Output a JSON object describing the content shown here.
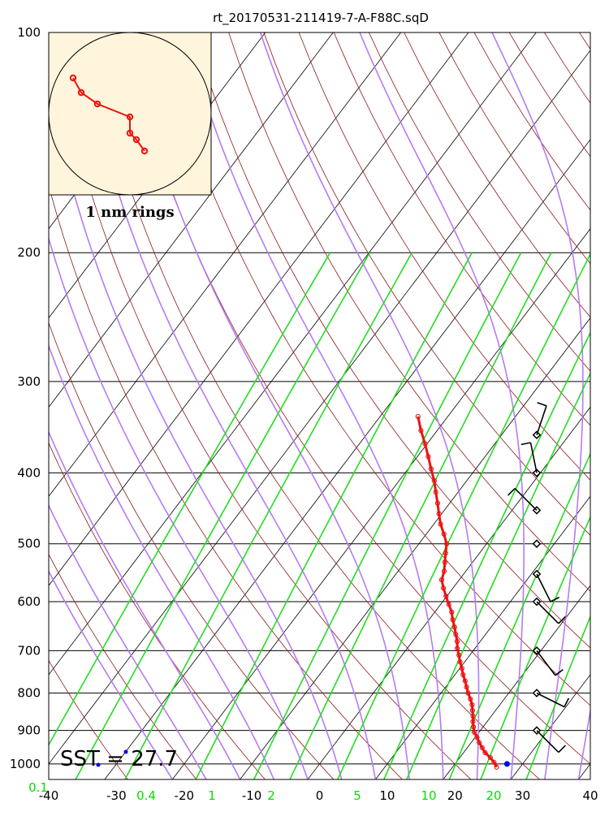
{
  "chart_data": {
    "type": "skew-t",
    "title": "rt_20170531-211419-7-A-F88C.sqD",
    "pressure_ticks": [
      100,
      200,
      300,
      400,
      500,
      600,
      700,
      800,
      900,
      1000
    ],
    "temperature_ticks": [
      -40,
      -30,
      -20,
      -10,
      0,
      10,
      20,
      30,
      40
    ],
    "mixing_ratio_ticks": [
      0.1,
      0.4,
      1,
      2,
      5,
      10,
      20
    ],
    "xlim": [
      -40,
      40
    ],
    "ylim": [
      1050,
      100
    ],
    "pressure_scale": "log",
    "sst_label": "SST = 27.7",
    "inset_label": "1 nm rings",
    "colors": {
      "temperature": "#ee1111",
      "isotherm": "#000000",
      "dry_adiabat": "#8b1a1a",
      "moist_adiabat": "#b57cf0",
      "mixing_ratio": "#22dd22",
      "inset_bg": "#fff5dc",
      "sst_marker": "#0000ee"
    },
    "temperature_profile": [
      {
        "p": 1010,
        "t": 26.5
      },
      {
        "p": 995,
        "t": 25.6
      },
      {
        "p": 980,
        "t": 24.5
      },
      {
        "p": 965,
        "t": 23.2
      },
      {
        "p": 950,
        "t": 22.2
      },
      {
        "p": 935,
        "t": 21.2
      },
      {
        "p": 920,
        "t": 20.3
      },
      {
        "p": 905,
        "t": 19.3
      },
      {
        "p": 890,
        "t": 18.6
      },
      {
        "p": 875,
        "t": 17.9
      },
      {
        "p": 860,
        "t": 17.3
      },
      {
        "p": 845,
        "t": 16.6
      },
      {
        "p": 830,
        "t": 15.9
      },
      {
        "p": 815,
        "t": 15.0
      },
      {
        "p": 800,
        "t": 14.0
      },
      {
        "p": 785,
        "t": 13.1
      },
      {
        "p": 770,
        "t": 12.2
      },
      {
        "p": 755,
        "t": 11.2
      },
      {
        "p": 740,
        "t": 10.3
      },
      {
        "p": 725,
        "t": 9.3
      },
      {
        "p": 710,
        "t": 8.4
      },
      {
        "p": 695,
        "t": 7.4
      },
      {
        "p": 680,
        "t": 6.6
      },
      {
        "p": 665,
        "t": 5.6
      },
      {
        "p": 650,
        "t": 4.6
      },
      {
        "p": 635,
        "t": 3.5
      },
      {
        "p": 620,
        "t": 2.5
      },
      {
        "p": 605,
        "t": 1.2
      },
      {
        "p": 590,
        "t": -0.1
      },
      {
        "p": 575,
        "t": -1.4
      },
      {
        "p": 560,
        "t": -2.6
      },
      {
        "p": 545,
        "t": -3.2
      },
      {
        "p": 530,
        "t": -4.1
      },
      {
        "p": 515,
        "t": -5.0
      },
      {
        "p": 500,
        "t": -5.9
      },
      {
        "p": 485,
        "t": -7.4
      },
      {
        "p": 470,
        "t": -9.0
      },
      {
        "p": 455,
        "t": -10.4
      },
      {
        "p": 440,
        "t": -11.8
      },
      {
        "p": 425,
        "t": -13.3
      },
      {
        "p": 410,
        "t": -14.8
      },
      {
        "p": 395,
        "t": -16.6
      },
      {
        "p": 380,
        "t": -18.4
      },
      {
        "p": 365,
        "t": -20.3
      },
      {
        "p": 350,
        "t": -22.4
      },
      {
        "p": 335,
        "t": -24.4
      }
    ],
    "wind_levels": [
      {
        "p": 355,
        "u": 10,
        "v": 30
      },
      {
        "p": 400,
        "u": -5,
        "v": 25
      },
      {
        "p": 450,
        "u": -15,
        "v": 15
      },
      {
        "p": 500,
        "u": 0,
        "v": 0
      },
      {
        "p": 550,
        "u": 10,
        "v": -20
      },
      {
        "p": 600,
        "u": 20,
        "v": -20
      },
      {
        "p": 700,
        "u": 15,
        "v": -20
      },
      {
        "p": 800,
        "u": 20,
        "v": -10
      },
      {
        "p": 900,
        "u": 15,
        "v": -15
      }
    ],
    "sst_point": {
      "p": 1000,
      "t": 27.7
    },
    "hodograph": [
      {
        "u": -3.5,
        "v": 2.2
      },
      {
        "u": -3.0,
        "v": 1.3
      },
      {
        "u": -2.0,
        "v": 0.6
      },
      {
        "u": 0.0,
        "v": -0.2
      },
      {
        "u": 0.0,
        "v": -1.2
      },
      {
        "u": 0.4,
        "v": -1.6
      },
      {
        "u": 0.9,
        "v": -2.3
      }
    ]
  }
}
